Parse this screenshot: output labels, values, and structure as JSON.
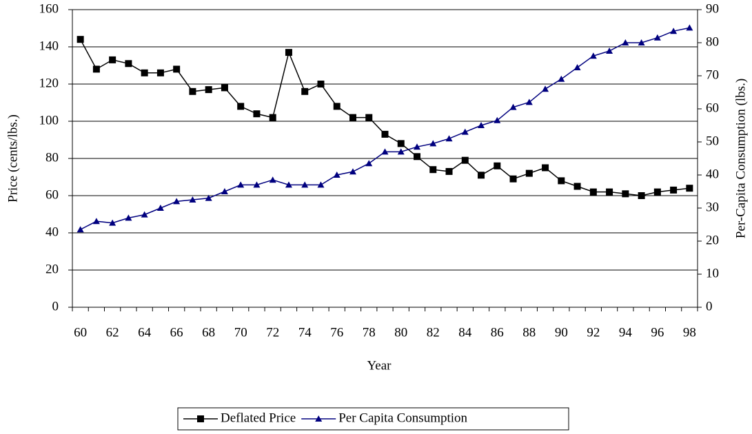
{
  "chart_data": {
    "type": "line",
    "xlabel": "Year",
    "ylabel": "Price (cents/lbs.)",
    "y2label": "Per-Capita Consumption (lbs.)",
    "categories": [
      "60",
      null,
      "62",
      null,
      "64",
      null,
      "66",
      null,
      "68",
      null,
      "70",
      null,
      "72",
      null,
      "74",
      null,
      "76",
      null,
      "78",
      null,
      "80",
      null,
      "82",
      null,
      "84",
      null,
      "86",
      null,
      "88",
      null,
      "90",
      null,
      "92",
      null,
      "94",
      null,
      "96",
      null,
      "98"
    ],
    "ylim": [
      0,
      160
    ],
    "yticks": [
      0,
      20,
      40,
      60,
      80,
      100,
      120,
      140,
      160
    ],
    "y2lim": [
      0,
      90
    ],
    "y2ticks": [
      0,
      10,
      20,
      30,
      40,
      50,
      60,
      70,
      80,
      90
    ],
    "grid": true,
    "legend": "bottom",
    "series": [
      {
        "name": "Deflated Price",
        "color": "#000000",
        "marker": "square",
        "values": [
          144,
          128,
          133,
          131,
          126,
          126,
          128,
          116,
          117,
          118,
          108,
          104,
          102,
          137,
          116,
          120,
          108,
          102,
          102,
          93,
          88,
          81,
          74,
          73,
          79,
          71,
          76,
          69,
          72,
          75,
          68,
          65,
          62,
          62,
          61,
          60,
          62,
          63,
          64
        ]
      },
      {
        "name": "Per Capita Consumption",
        "color": "#00007f",
        "marker": "triangle",
        "axis": "y2",
        "values": [
          23.5,
          26,
          25.5,
          27,
          28,
          30,
          32,
          32.5,
          33,
          35,
          37,
          37,
          38.5,
          37,
          37,
          37,
          40,
          41,
          43.5,
          47,
          47,
          48.5,
          49.5,
          51,
          53,
          55,
          56.5,
          60.5,
          62,
          66,
          69,
          72.5,
          76,
          77.5,
          80,
          80,
          81.5,
          83.5,
          84.5
        ]
      }
    ]
  }
}
